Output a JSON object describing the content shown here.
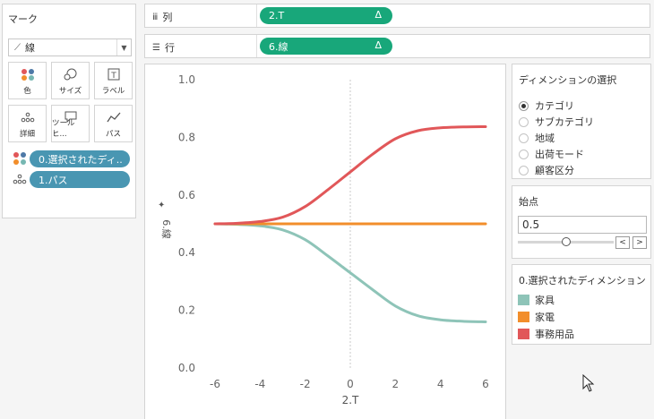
{
  "marks": {
    "title": "マーク",
    "mark_type": "線",
    "buttons": [
      {
        "label": "色",
        "icon": "color-icon"
      },
      {
        "label": "サイズ",
        "icon": "size-icon"
      },
      {
        "label": "ラベル",
        "icon": "label-icon"
      },
      {
        "label": "詳細",
        "icon": "detail-icon"
      },
      {
        "label": "ツールヒ...",
        "icon": "tooltip-icon"
      },
      {
        "label": "パス",
        "icon": "path-icon"
      }
    ],
    "pills": [
      {
        "label": "0.選択されたディ..",
        "icon": "color-icon"
      },
      {
        "label": "1.パス",
        "icon": "detail-icon"
      }
    ]
  },
  "columns": {
    "label": "列",
    "pill": "2.T",
    "pill_marker": "Δ"
  },
  "rows": {
    "label": "行",
    "pill": "6.線",
    "pill_marker": "Δ"
  },
  "dimension_selector": {
    "title": "ディメンションの選択",
    "selected": 0,
    "options": [
      "カテゴリ",
      "サブカテゴリ",
      "地域",
      "出荷モード",
      "顧客区分"
    ]
  },
  "start_param": {
    "title": "始点",
    "value": "0.5",
    "slider_fraction": 0.5,
    "prev": "<",
    "next": ">"
  },
  "legend": {
    "title": "0.選択されたディメンション",
    "items": [
      {
        "label": "家具",
        "color": "#8ec4b8"
      },
      {
        "label": "家電",
        "color": "#f28e2b"
      },
      {
        "label": "事務用品",
        "color": "#e15759"
      }
    ]
  },
  "chart_data": {
    "type": "line",
    "xlabel": "2.T",
    "ylabel": "6.線",
    "xlim": [
      -6,
      6
    ],
    "ylim": [
      0,
      1
    ],
    "xticks": [
      "-6",
      "-4",
      "-2",
      "0",
      "2",
      "4",
      "6"
    ],
    "yticks": [
      "0.0",
      "0.2",
      "0.4",
      "0.6",
      "0.8",
      "1.0"
    ],
    "grid": false,
    "x": [
      -6,
      -5,
      -4,
      -3,
      -2,
      -1,
      0,
      1,
      2,
      3,
      4,
      5,
      6
    ],
    "series": [
      {
        "name": "家具",
        "color": "#8ec4b8",
        "values": [
          0.5,
          0.498,
          0.493,
          0.479,
          0.445,
          0.389,
          0.33,
          0.271,
          0.215,
          0.181,
          0.167,
          0.162,
          0.16
        ]
      },
      {
        "name": "家電",
        "color": "#f28e2b",
        "values": [
          0.5,
          0.5,
          0.5,
          0.5,
          0.5,
          0.5,
          0.5,
          0.5,
          0.5,
          0.5,
          0.5,
          0.5,
          0.5
        ]
      },
      {
        "name": "事務用品",
        "color": "#e15759",
        "values": [
          0.5,
          0.502,
          0.508,
          0.523,
          0.56,
          0.618,
          0.68,
          0.742,
          0.795,
          0.823,
          0.833,
          0.836,
          0.837
        ]
      }
    ]
  }
}
